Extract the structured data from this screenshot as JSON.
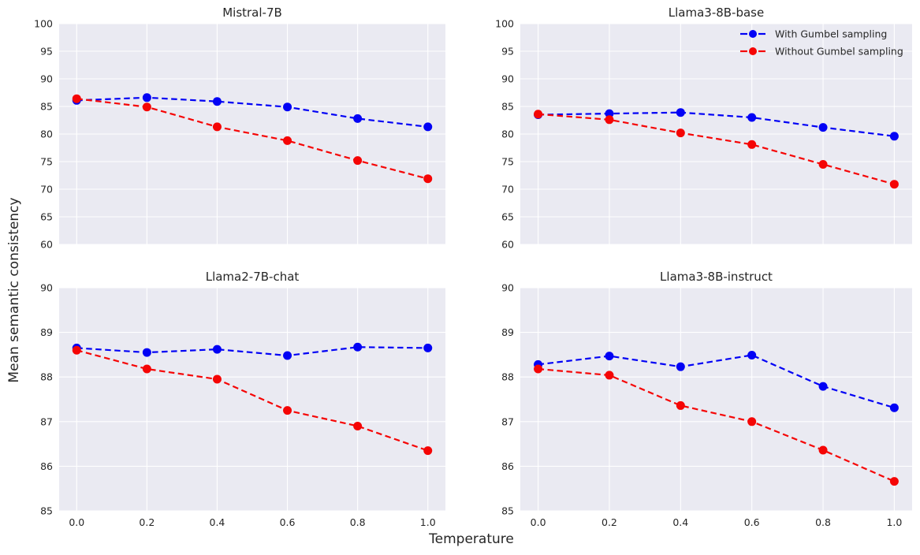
{
  "figure": {
    "ylabel": "Mean semantic consistency",
    "xlabel": "Temperature",
    "background": "#ffffff",
    "panel_background": "#eaeaf2",
    "grid_color": "#ffffff",
    "text_color": "#262626"
  },
  "legend": {
    "position": "upper right",
    "items": [
      {
        "label": "With Gumbel sampling",
        "color": "#0202f5",
        "marker": "circle",
        "linestyle": "dashed"
      },
      {
        "label": "Without Gumbel sampling",
        "color": "#f50505",
        "marker": "circle",
        "linestyle": "dashed"
      }
    ]
  },
  "chart_data": [
    {
      "type": "line",
      "title": "Mistral-7B",
      "x": [
        0.0,
        0.2,
        0.4,
        0.6,
        0.8,
        1.0
      ],
      "xtick_labels": [
        "0.0",
        "0.2",
        "0.4",
        "0.6",
        "0.8",
        "1.0"
      ],
      "show_xticklabels": false,
      "ylim": [
        60,
        100
      ],
      "yticks": [
        60,
        65,
        70,
        75,
        80,
        85,
        90,
        95,
        100
      ],
      "grid": true,
      "legend": false,
      "series": [
        {
          "name": "With Gumbel sampling",
          "color": "#0202f5",
          "values": [
            86.1,
            86.6,
            85.9,
            84.9,
            82.8,
            81.3
          ]
        },
        {
          "name": "Without Gumbel sampling",
          "color": "#f50505",
          "values": [
            86.4,
            84.9,
            81.3,
            78.8,
            75.2,
            71.9
          ]
        }
      ]
    },
    {
      "type": "line",
      "title": "Llama3-8B-base",
      "x": [
        0.0,
        0.2,
        0.4,
        0.6,
        0.8,
        1.0
      ],
      "xtick_labels": [
        "0.0",
        "0.2",
        "0.4",
        "0.6",
        "0.8",
        "1.0"
      ],
      "show_xticklabels": false,
      "ylim": [
        60,
        100
      ],
      "yticks": [
        60,
        65,
        70,
        75,
        80,
        85,
        90,
        95,
        100
      ],
      "grid": true,
      "legend": true,
      "series": [
        {
          "name": "With Gumbel sampling",
          "color": "#0202f5",
          "values": [
            83.5,
            83.7,
            83.9,
            83.0,
            81.2,
            79.6
          ]
        },
        {
          "name": "Without Gumbel sampling",
          "color": "#f50505",
          "values": [
            83.6,
            82.6,
            80.2,
            78.1,
            74.5,
            70.9
          ]
        }
      ]
    },
    {
      "type": "line",
      "title": "Llama2-7B-chat",
      "x": [
        0.0,
        0.2,
        0.4,
        0.6,
        0.8,
        1.0
      ],
      "xtick_labels": [
        "0.0",
        "0.2",
        "0.4",
        "0.6",
        "0.8",
        "1.0"
      ],
      "show_xticklabels": true,
      "ylim": [
        85,
        90
      ],
      "yticks": [
        85,
        86,
        87,
        88,
        89,
        90
      ],
      "grid": true,
      "legend": false,
      "series": [
        {
          "name": "With Gumbel sampling",
          "color": "#0202f5",
          "values": [
            88.65,
            88.55,
            88.62,
            88.48,
            88.67,
            88.65
          ]
        },
        {
          "name": "Without Gumbel sampling",
          "color": "#f50505",
          "values": [
            88.6,
            88.18,
            87.95,
            87.25,
            86.9,
            86.35
          ]
        }
      ]
    },
    {
      "type": "line",
      "title": "Llama3-8B-instruct",
      "x": [
        0.0,
        0.2,
        0.4,
        0.6,
        0.8,
        1.0
      ],
      "xtick_labels": [
        "0.0",
        "0.2",
        "0.4",
        "0.6",
        "0.8",
        "1.0"
      ],
      "show_xticklabels": true,
      "ylim": [
        85,
        90
      ],
      "yticks": [
        85,
        86,
        87,
        88,
        89,
        90
      ],
      "grid": true,
      "legend": false,
      "series": [
        {
          "name": "With Gumbel sampling",
          "color": "#0202f5",
          "values": [
            88.28,
            88.47,
            88.23,
            88.49,
            87.79,
            87.31
          ]
        },
        {
          "name": "Without Gumbel sampling",
          "color": "#f50505",
          "values": [
            88.18,
            88.04,
            87.36,
            87.0,
            86.36,
            85.66
          ]
        }
      ]
    }
  ]
}
